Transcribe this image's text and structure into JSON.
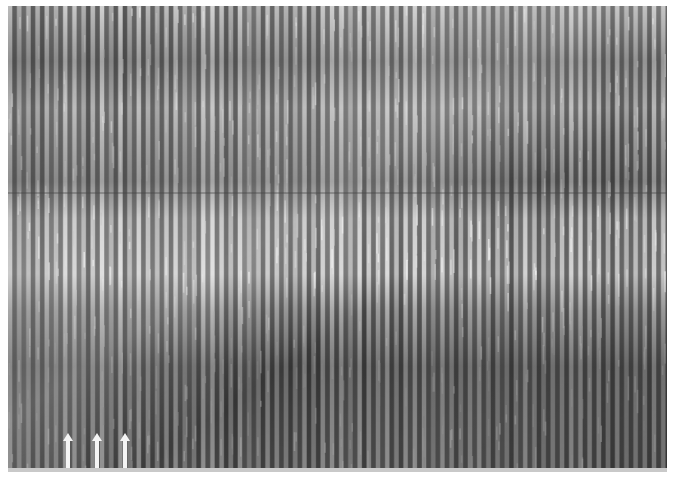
{
  "image": {
    "description_free": true,
    "colors": {
      "background": "#ffffff",
      "stripe_dark": "#5f5f5f",
      "stripe_light": "#d6d6d6",
      "arrow": "#f2f2f2",
      "reference_line": "#4a4a4a"
    },
    "markers": {
      "arrow_icon": "up-arrow-icon",
      "arrow_count": 3
    }
  }
}
